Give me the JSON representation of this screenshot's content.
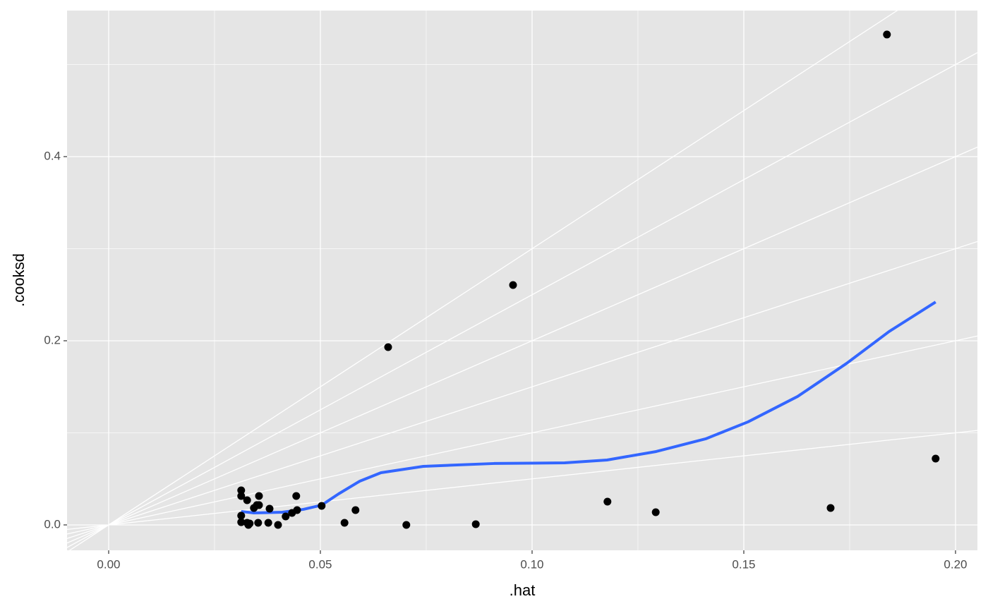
{
  "chart_data": {
    "type": "scatter",
    "x_label": ".hat",
    "y_label": ".cooksd",
    "xlim": [
      -0.00983,
      0.20517
    ],
    "ylim": [
      -0.0276,
      0.5586
    ],
    "xticks": [
      {
        "value": 0,
        "label": "0.00"
      },
      {
        "value": 0.05,
        "label": "0.05"
      },
      {
        "value": 0.1,
        "label": "0.10"
      },
      {
        "value": 0.15,
        "label": "0.15"
      },
      {
        "value": 0.2,
        "label": "0.20"
      }
    ],
    "yticks": [
      {
        "value": 0,
        "label": "0.0"
      },
      {
        "value": 0.2,
        "label": "0.2"
      },
      {
        "value": 0.4,
        "label": "0.4"
      }
    ],
    "grid": true,
    "reference_slopes": [
      0.5,
      1,
      1.5,
      2,
      2.5,
      3
    ],
    "reference_color": "#ffffff",
    "points": {
      "color": "#000000",
      "x": [
        0.0313,
        0.0313,
        0.0313,
        0.0313,
        0.0327,
        0.0327,
        0.033,
        0.0333,
        0.0343,
        0.035,
        0.0353,
        0.0355,
        0.0355,
        0.0377,
        0.038,
        0.04,
        0.0418,
        0.0433,
        0.0443,
        0.0445,
        0.0503,
        0.0557,
        0.0583,
        0.066,
        0.0703,
        0.0867,
        0.0955,
        0.1178,
        0.1292,
        0.1705,
        0.1838,
        0.1953
      ],
      "y": [
        0.0375,
        0.0314,
        0.01,
        0.003,
        0.0268,
        0.0023,
        0,
        0.0015,
        0.0184,
        0.0215,
        0.0023,
        0.0314,
        0.0215,
        0.0023,
        0.0176,
        0,
        0.0092,
        0.013,
        0.0314,
        0.0161,
        0.0207,
        0.0023,
        0.0161,
        0.1931,
        0,
        0.0008,
        0.2605,
        0.0253,
        0.0138,
        0.0184,
        0.5326,
        0.072
      ]
    },
    "smooth": {
      "color": "#3366ff",
      "x": [
        0.0313,
        0.0343,
        0.041,
        0.046,
        0.0503,
        0.0543,
        0.0593,
        0.0643,
        0.0743,
        0.091,
        0.1077,
        0.1177,
        0.1293,
        0.141,
        0.151,
        0.1627,
        0.1743,
        0.1843,
        0.1953
      ],
      "y": [
        0.0146,
        0.013,
        0.0138,
        0.0169,
        0.0215,
        0.0337,
        0.0475,
        0.0567,
        0.0636,
        0.0667,
        0.0674,
        0.0705,
        0.0797,
        0.0935,
        0.1119,
        0.1395,
        0.1755,
        0.21,
        0.2421
      ]
    }
  }
}
